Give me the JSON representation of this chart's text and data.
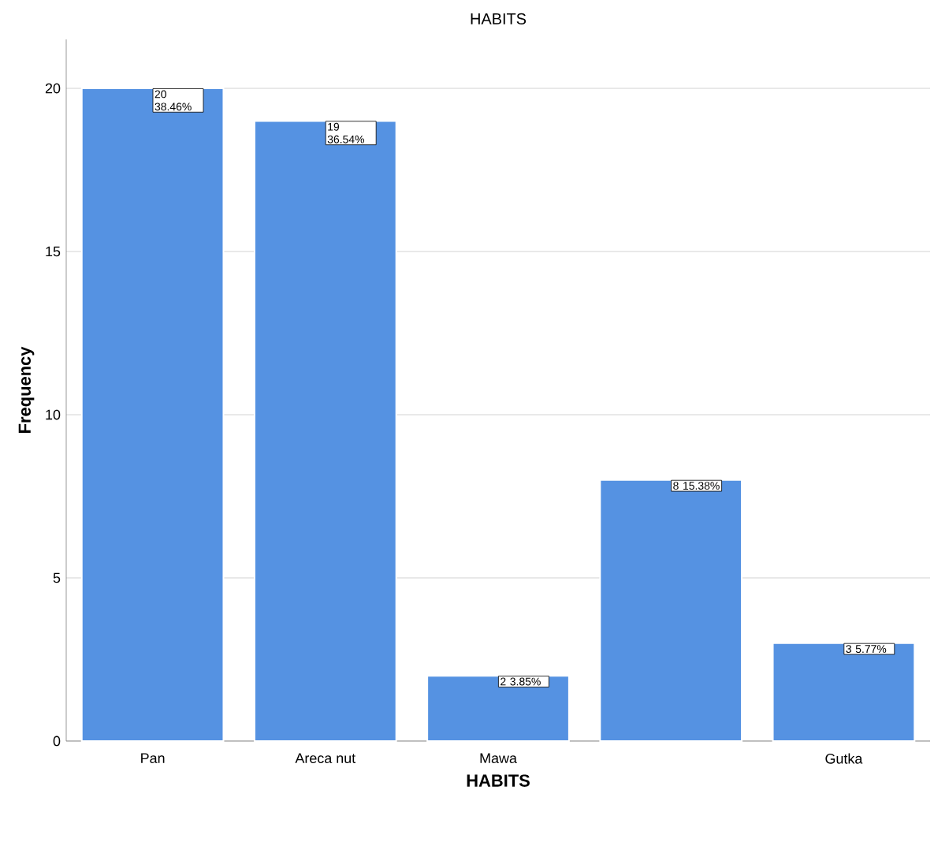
{
  "chart_data": {
    "type": "bar",
    "title": "HABITS",
    "xlabel": "HABITS",
    "ylabel": "Frequency",
    "categories": [
      "Pan",
      "Areca nut",
      "Mawa",
      null,
      "Gutka"
    ],
    "values": [
      20,
      19,
      2,
      8,
      3
    ],
    "value_labels": [
      "20 38.46%",
      "19 36.54%",
      "2 3.85%",
      "8 15.38%",
      "3 5.77%"
    ],
    "color": "#5592e2",
    "ylim": [
      0,
      21.5
    ],
    "yticks": [
      0,
      5,
      10,
      15,
      20
    ],
    "grid": "y"
  }
}
